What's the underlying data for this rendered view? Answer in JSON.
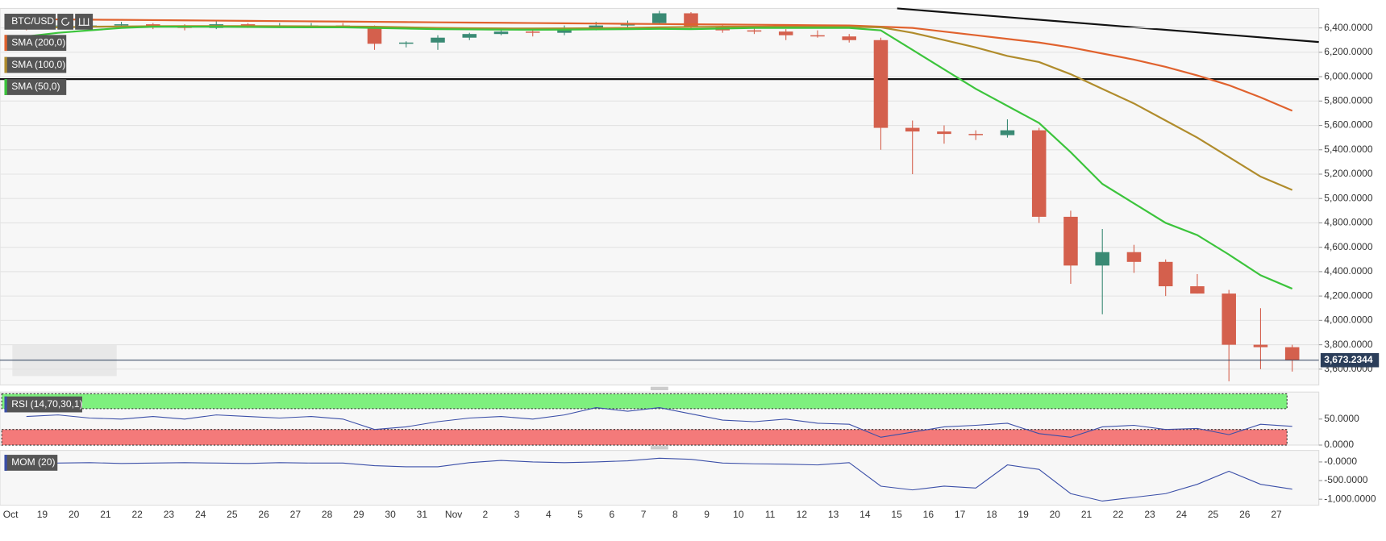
{
  "chart_data": [
    {
      "type": "candlestick",
      "title": "BTC/USD",
      "categories": [
        "Oct",
        "19",
        "20",
        "21",
        "22",
        "23",
        "24",
        "25",
        "26",
        "27",
        "28",
        "29",
        "30",
        "31",
        "Nov",
        "2",
        "3",
        "4",
        "5",
        "6",
        "7",
        "8",
        "9",
        "10",
        "11",
        "12",
        "13",
        "14",
        "15",
        "16",
        "17",
        "18",
        "19",
        "20",
        "21",
        "22",
        "23",
        "24",
        "25",
        "26",
        "27"
      ],
      "open": [
        6440,
        6420,
        6420,
        6420,
        6430,
        6410,
        6400,
        6430,
        6420,
        6420,
        6420,
        6410,
        6270,
        6280,
        6320,
        6350,
        6370,
        6360,
        6400,
        6420,
        6440,
        6520,
        6410,
        6380,
        6370,
        6340,
        6330,
        6300,
        5580,
        5550,
        5530,
        5520,
        5560,
        4850,
        4450,
        4560,
        4480,
        4280,
        4220,
        3800,
        3780
      ],
      "high": [
        6470,
        6450,
        6440,
        6450,
        6440,
        6430,
        6460,
        6440,
        6440,
        6440,
        6440,
        6420,
        6290,
        6340,
        6360,
        6390,
        6380,
        6420,
        6450,
        6460,
        6540,
        6530,
        6420,
        6400,
        6390,
        6380,
        6350,
        6320,
        5640,
        5600,
        5560,
        5650,
        5580,
        4900,
        4750,
        4620,
        4500,
        4380,
        4250,
        4100,
        3800
      ],
      "low": [
        6380,
        6390,
        6400,
        6400,
        6390,
        6380,
        6390,
        6400,
        6400,
        6400,
        6400,
        6220,
        6240,
        6220,
        6300,
        6340,
        6330,
        6340,
        6380,
        6390,
        6430,
        6390,
        6360,
        6350,
        6300,
        6320,
        6280,
        5400,
        5200,
        5450,
        5480,
        5500,
        4800,
        4300,
        4050,
        4390,
        4200,
        4220,
        3500,
        3600,
        3580
      ],
      "close": [
        6420,
        6420,
        6420,
        6430,
        6410,
        6400,
        6430,
        6420,
        6420,
        6420,
        6410,
        6270,
        6280,
        6320,
        6350,
        6370,
        6360,
        6400,
        6420,
        6440,
        6520,
        6410,
        6380,
        6370,
        6340,
        6330,
        6300,
        5580,
        5550,
        5530,
        5520,
        5560,
        4850,
        4450,
        4560,
        4480,
        4280,
        4220,
        3800,
        3780,
        3673.2344
      ],
      "up_color": "#3a8a74",
      "down_color": "#d4604d",
      "series": [
        {
          "name": "SMA (200,0)",
          "color": "#e0622e",
          "values": [
            6470,
            6470,
            6468,
            6466,
            6464,
            6462,
            6460,
            6458,
            6456,
            6454,
            6452,
            6450,
            6448,
            6446,
            6444,
            6442,
            6440,
            6438,
            6436,
            6434,
            6432,
            6430,
            6428,
            6426,
            6424,
            6422,
            6420,
            6410,
            6400,
            6370,
            6340,
            6310,
            6280,
            6240,
            6190,
            6140,
            6080,
            6010,
            5930,
            5830,
            5720
          ]
        },
        {
          "name": "SMA (100,0)",
          "color": "#b08c2c",
          "values": [
            6400,
            6405,
            6410,
            6412,
            6414,
            6415,
            6415,
            6415,
            6414,
            6413,
            6412,
            6410,
            6405,
            6400,
            6398,
            6396,
            6395,
            6396,
            6398,
            6400,
            6405,
            6408,
            6410,
            6410,
            6410,
            6410,
            6410,
            6405,
            6360,
            6300,
            6240,
            6170,
            6120,
            6020,
            5900,
            5780,
            5640,
            5500,
            5340,
            5180,
            5070
          ]
        },
        {
          "name": "SMA (50,0)",
          "color": "#3cc43c",
          "values": [
            6330,
            6360,
            6380,
            6400,
            6410,
            6410,
            6410,
            6408,
            6406,
            6405,
            6405,
            6400,
            6395,
            6390,
            6388,
            6386,
            6385,
            6386,
            6388,
            6390,
            6392,
            6390,
            6395,
            6400,
            6400,
            6400,
            6400,
            6380,
            6220,
            6060,
            5900,
            5760,
            5620,
            5380,
            5120,
            4960,
            4800,
            4700,
            4540,
            4370,
            4260
          ]
        }
      ],
      "hlines": [
        5980
      ],
      "last_price": {
        "value": 3673.2344,
        "label": "3,673.2344"
      },
      "ylim": [
        3470,
        6560
      ],
      "yticks": [
        {
          "value": 3600,
          "label": "3,600.0000"
        },
        {
          "value": 3800,
          "label": "3,800.0000"
        },
        {
          "value": 4000,
          "label": "4,000.0000"
        },
        {
          "value": 4200,
          "label": "4,200.0000"
        },
        {
          "value": 4400,
          "label": "4,400.0000"
        },
        {
          "value": 4600,
          "label": "4,600.0000"
        },
        {
          "value": 4800,
          "label": "4,800.0000"
        },
        {
          "value": 5000,
          "label": "5,000.0000"
        },
        {
          "value": 5200,
          "label": "5,200.0000"
        },
        {
          "value": 5400,
          "label": "5,400.0000"
        },
        {
          "value": 5600,
          "label": "5,600.0000"
        },
        {
          "value": 5800,
          "label": "5,800.0000"
        },
        {
          "value": 6000,
          "label": "6,000.0000"
        },
        {
          "value": 6200,
          "label": "6,200.0000"
        },
        {
          "value": 6400,
          "label": "6,400.0000"
        }
      ],
      "grid": true
    },
    {
      "type": "line",
      "title": "RSI (14,70,30,1)",
      "color": "#3b4fa8",
      "values": [
        55,
        58,
        52,
        50,
        55,
        50,
        58,
        55,
        52,
        55,
        50,
        30,
        35,
        45,
        52,
        55,
        50,
        58,
        72,
        65,
        72,
        60,
        48,
        45,
        50,
        42,
        40,
        15,
        25,
        35,
        38,
        42,
        22,
        15,
        35,
        38,
        30,
        32,
        20,
        40,
        36
      ],
      "bands": [
        {
          "from": 70,
          "to": 100,
          "color": "#7ef07e"
        },
        {
          "from": 0,
          "to": 30,
          "color": "#f47a7a"
        }
      ],
      "ylim": [
        0,
        102
      ],
      "yticks": [
        {
          "value": 0,
          "label": "0.0000"
        },
        {
          "value": 50,
          "label": "50.0000"
        }
      ]
    },
    {
      "type": "line",
      "title": "MOM (20)",
      "color": "#3b4fa8",
      "values": [
        -80,
        -30,
        -20,
        -40,
        -30,
        -20,
        -30,
        -40,
        -20,
        -30,
        -30,
        -100,
        -130,
        -130,
        -20,
        40,
        0,
        -20,
        0,
        30,
        100,
        70,
        -30,
        -50,
        -60,
        -80,
        -20,
        -650,
        -750,
        -650,
        -700,
        -80,
        -200,
        -850,
        -1050,
        -950,
        -850,
        -600,
        -250,
        -600,
        -730
      ],
      "ylim": [
        -1160,
        310
      ],
      "yticks": [
        {
          "value": 0,
          "label": "-0.0000"
        },
        {
          "value": -500,
          "label": "-500.0000"
        },
        {
          "value": -1000,
          "label": "-1,000.0000"
        }
      ]
    }
  ]
}
